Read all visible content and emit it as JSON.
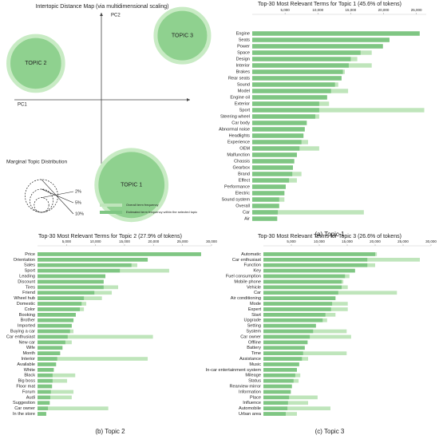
{
  "chart_data": [
    {
      "type": "bubble",
      "title": "Intertopic Distance Map (via multidimensional scaling)",
      "xlabel": "PC1",
      "ylabel": "PC2",
      "xlim": [
        -1,
        1
      ],
      "ylim": [
        -1,
        1
      ],
      "color": "#8fd18f",
      "ring_color": "#c8ebc4",
      "categories": [
        "TOPIC 1",
        "TOPIC 2",
        "TOPIC 3"
      ],
      "x": [
        0.34,
        -0.77,
        0.93
      ],
      "y": [
        -0.89,
        0.38,
        0.67
      ],
      "sizes": [
        45.6,
        27.9,
        26.6
      ],
      "size_legend": {
        "title": "Marginal Topic Distribution",
        "values": [
          2,
          5,
          10
        ],
        "value_labels": [
          "2%",
          "5%",
          "10%"
        ]
      }
    },
    {
      "type": "barh",
      "title": "Top-30 Most Relevant Terms for Topic 1 (45.6% of tokens)",
      "caption": "(a) Topic 1",
      "categories": [
        "Engine",
        "Seats",
        "Power",
        "Space",
        "Design",
        "Interior",
        "Brakes",
        "Rear seats",
        "Sound",
        "Model",
        "Engine oil",
        "Exterior",
        "Sport",
        "Steering wheel",
        "Car body",
        "Abnormal noise",
        "Headlights",
        "Experience",
        "OEM",
        "Malfunction",
        "Chassis",
        "Gearbox",
        "Brand",
        "Effect",
        "Performance",
        "Electric",
        "Sound system",
        "Overall",
        "Car",
        "Air"
      ],
      "series": [
        {
          "name": "Overall term frequency",
          "color": "#bfe5bb",
          "values": [
            25500,
            20900,
            19900,
            18200,
            16000,
            18200,
            14100,
            13600,
            13100,
            14600,
            11400,
            11700,
            26200,
            10200,
            8300,
            8000,
            7800,
            8500,
            10200,
            6800,
            6400,
            6200,
            7500,
            6800,
            5100,
            4900,
            4900,
            4100,
            17000,
            3800
          ]
        },
        {
          "name": "Estimated term frequency within the selected topic",
          "color": "#7fc683",
          "values": [
            25500,
            20900,
            19900,
            16500,
            15000,
            14700,
            13800,
            13600,
            12600,
            12000,
            11400,
            10200,
            10200,
            9600,
            8300,
            8000,
            7800,
            7500,
            7200,
            6800,
            6400,
            6200,
            6100,
            5600,
            5100,
            4900,
            4100,
            4100,
            3900,
            3800
          ]
        }
      ],
      "xlim": [
        0,
        26500
      ],
      "xticks": [
        {
          "value": 5000,
          "label": "5,000"
        },
        {
          "value": 10000,
          "label": "10,000"
        },
        {
          "value": 15000,
          "label": "15,000"
        },
        {
          "value": 20000,
          "label": "20,000"
        },
        {
          "value": 25000,
          "label": "25,000"
        }
      ]
    },
    {
      "type": "barh",
      "title": "Top-30 Most Relevant Terms for Topic 2 (27.9% of tokens)",
      "caption": "(b) Topic 2",
      "categories": [
        "Price",
        "Orientation",
        "Sales",
        "Sport",
        "Leading",
        "Discount",
        "Tires",
        "Friend",
        "Wheel hub",
        "Domestic",
        "Color",
        "Booking",
        "Brother",
        "Imported",
        "Buying a car",
        "Car enthusiast",
        "New car",
        "Wife",
        "Month",
        "Interior",
        "Available",
        "White",
        "Black",
        "Big boss",
        "Floor mat",
        "Forum",
        "Audi",
        "Suggestion",
        "Car owner",
        "In the store"
      ],
      "series": [
        {
          "color": "#bfe5bb",
          "values": [
            28200,
            19000,
            17200,
            22700,
            11700,
            11400,
            13900,
            12800,
            11100,
            8400,
            8000,
            6600,
            6200,
            5900,
            6200,
            19900,
            5900,
            4300,
            3900,
            19000,
            3200,
            2800,
            6500,
            5100,
            2500,
            6200,
            5900,
            2100,
            12200,
            1500
          ]
        },
        {
          "color": "#7fc683",
          "values": [
            28200,
            19000,
            16200,
            14200,
            11700,
            11400,
            11400,
            9800,
            8000,
            7600,
            7300,
            6600,
            6200,
            5900,
            5600,
            5200,
            4800,
            4300,
            3900,
            3400,
            3200,
            2800,
            2600,
            2600,
            2500,
            2300,
            2200,
            2100,
            1800,
            1500
          ]
        }
      ],
      "xlim": [
        0,
        30000
      ],
      "xticks": [
        {
          "value": 5000,
          "label": "5,000"
        },
        {
          "value": 10000,
          "label": "10,000"
        },
        {
          "value": 15000,
          "label": "15,000"
        },
        {
          "value": 20000,
          "label": "20,000"
        },
        {
          "value": 25000,
          "label": "25,000"
        },
        {
          "value": 30000,
          "label": "30,000"
        }
      ]
    },
    {
      "type": "barh",
      "title": "Top-30 Most Relevant Terms for Topic 3 (26.6% of tokens)",
      "caption": "(c) Topic 3",
      "categories": [
        "Automatic",
        "Car enthusiast",
        "Function",
        "Key",
        "Fuel consumption",
        "Mobile phone",
        "Vehicle",
        "Car",
        "Air conditioning",
        "Mode",
        "Expert",
        "Start",
        "Upgrade",
        "Setting",
        "System",
        "Car owner",
        "Offline",
        "Battery",
        "Time",
        "Assistance",
        "Music",
        "In-car entertainment system",
        "Mileage",
        "Status",
        "Rearview mirror",
        "Information",
        "Place",
        "Influence",
        "Automobile",
        "Urban area"
      ],
      "series": [
        {
          "color": "#bfe5bb",
          "values": [
            20300,
            28000,
            20000,
            16400,
            15400,
            14300,
            15100,
            23900,
            12900,
            15100,
            15100,
            12900,
            11400,
            9400,
            14900,
            15700,
            7900,
            7400,
            14900,
            8000,
            6400,
            6000,
            6600,
            6300,
            5100,
            4900,
            9700,
            8000,
            12000,
            6000
          ]
        },
        {
          "color": "#7fc683",
          "values": [
            20000,
            18600,
            18600,
            16400,
            14600,
            14000,
            14000,
            13400,
            12900,
            12300,
            12100,
            11100,
            10600,
            9400,
            8900,
            8300,
            7900,
            7400,
            7100,
            6900,
            6400,
            6000,
            5700,
            5400,
            5100,
            4900,
            4600,
            4400,
            4300,
            4000
          ]
        }
      ],
      "xlim": [
        0,
        30000
      ],
      "xticks": [
        {
          "value": 5000,
          "label": "5,000"
        },
        {
          "value": 10000,
          "label": "10,000"
        },
        {
          "value": 15000,
          "label": "15,000"
        },
        {
          "value": 20000,
          "label": "20,000"
        },
        {
          "value": 25000,
          "label": "25,000"
        },
        {
          "value": 30000,
          "label": "30,000"
        }
      ]
    }
  ]
}
